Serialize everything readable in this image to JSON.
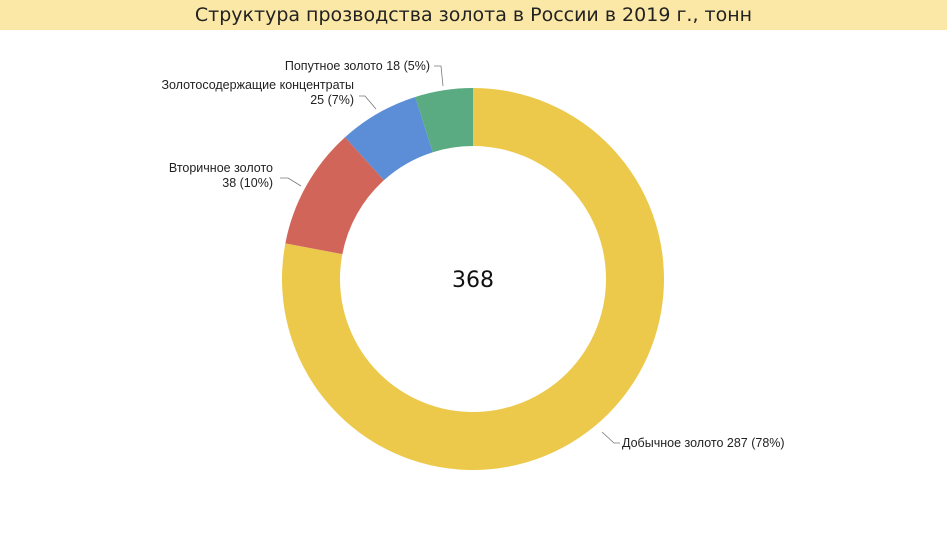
{
  "chart_data": {
    "type": "pie",
    "donut": true,
    "title": "Структура прозводства золота в России в 2019 г., тонн",
    "center_label": "368",
    "slices": [
      {
        "name": "Добычное золото",
        "value": 287,
        "percent": "78%",
        "color": "#ecc94b",
        "label_lines": [
          "Добычное золото 287 (78%)"
        ]
      },
      {
        "name": "Вторичное золото",
        "value": 38,
        "percent": "10%",
        "color": "#d2655a",
        "label_lines": [
          "Вторичное золото",
          "38 (10%)"
        ]
      },
      {
        "name": "Золотосодержащие концентраты",
        "value": 25,
        "percent": "7%",
        "color": "#5b8ed6",
        "label_lines": [
          "Золотосодержащие концентраты",
          "25 (7%)"
        ]
      },
      {
        "name": "Попутное золото",
        "value": 18,
        "percent": "5%",
        "color": "#5aab82",
        "label_lines": [
          "Попутное золото 18 (5%)"
        ]
      }
    ],
    "legend": "none"
  }
}
